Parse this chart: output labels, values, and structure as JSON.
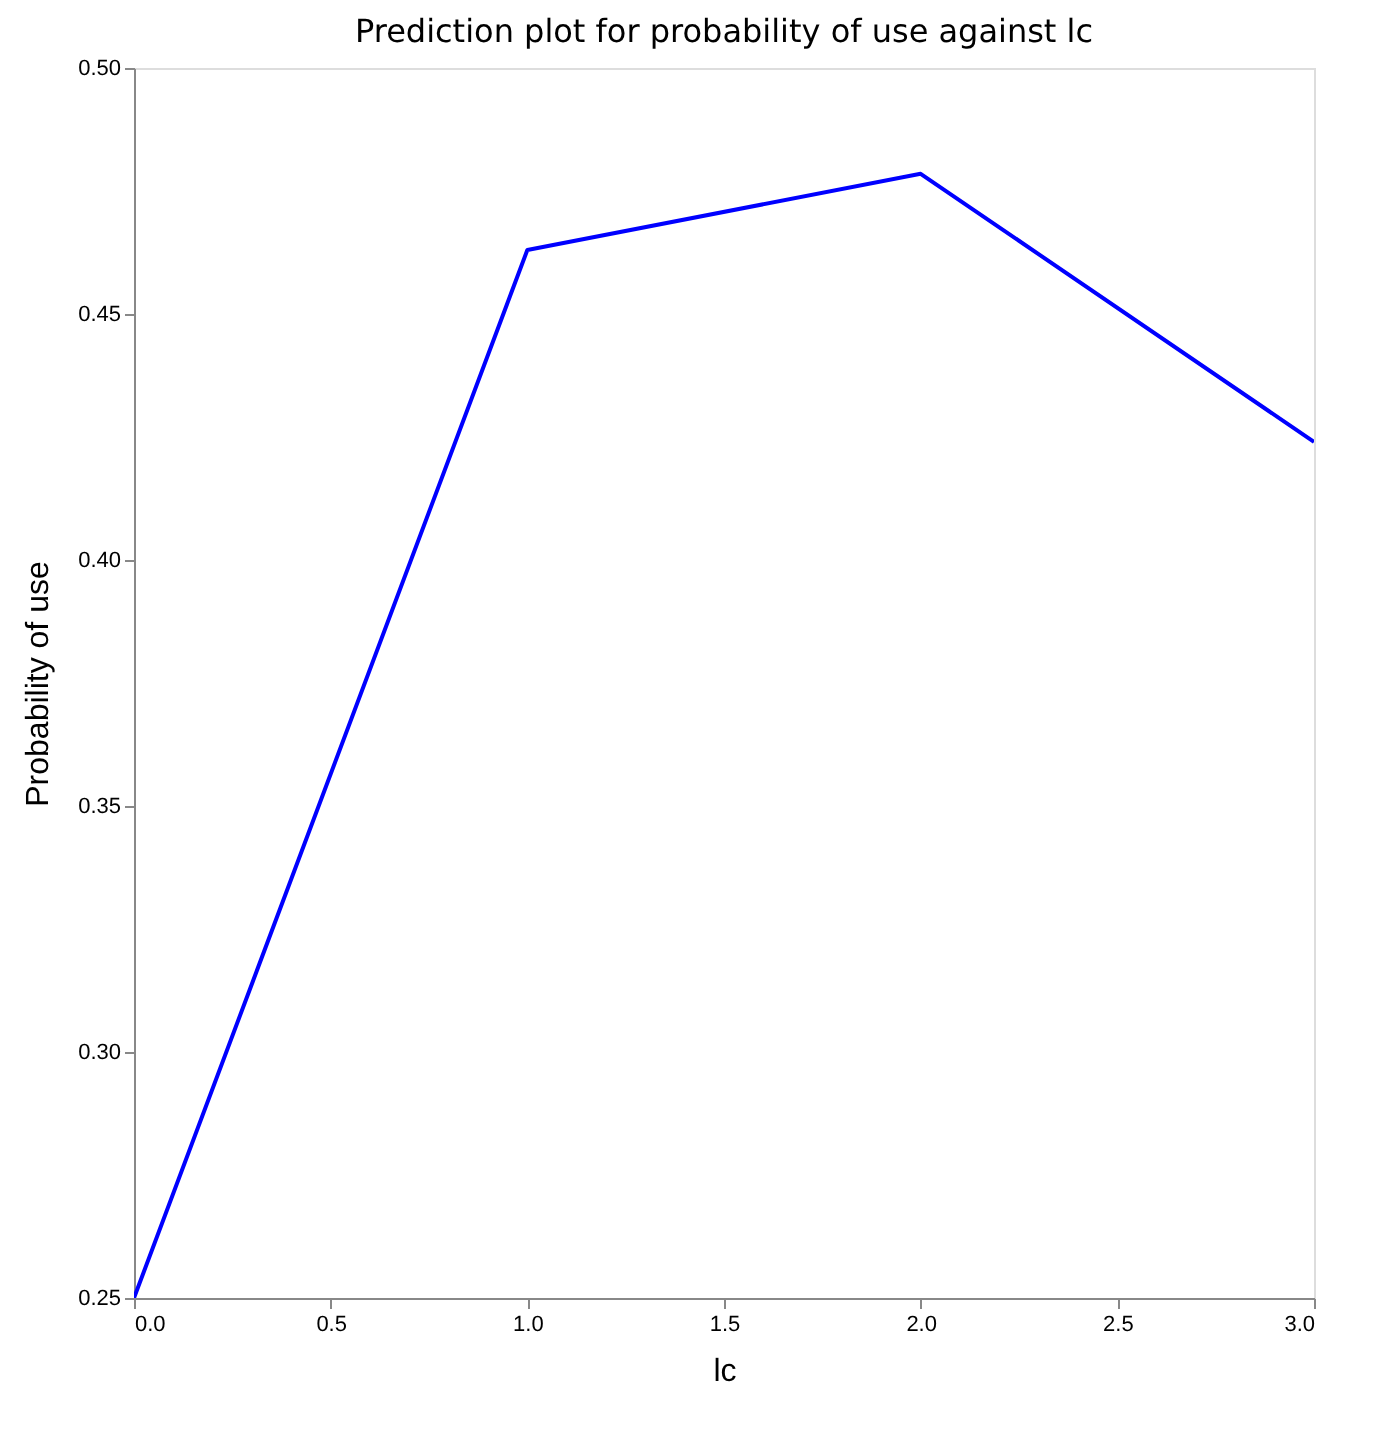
{
  "chart_data": {
    "type": "line",
    "title": "Prediction plot for probability of use against lc",
    "xlabel": "lc",
    "ylabel": "Probability of use",
    "x": [
      0,
      1,
      2,
      3
    ],
    "series": [
      {
        "color": "#0000ff",
        "values": [
          0.25,
          0.463,
          0.4785,
          0.424
        ]
      }
    ],
    "xlim": [
      0,
      3
    ],
    "xticks": [
      {
        "value": 0,
        "label": "0.0"
      },
      0.5,
      {
        "value": 1,
        "label": "1.0"
      },
      1.5,
      {
        "value": 2,
        "label": "2.0"
      },
      2.5,
      {
        "value": 3,
        "label": "3.0"
      }
    ],
    "ylim": [
      0.25,
      0.5
    ],
    "yticks": [
      0.25,
      {
        "value": 0.3,
        "label": "0.30"
      },
      0.35,
      {
        "value": 0.4,
        "label": "0.40"
      },
      0.45,
      {
        "value": 0.5,
        "label": "0.50"
      }
    ],
    "grid": false,
    "marker": "none",
    "line_style": "solid"
  }
}
